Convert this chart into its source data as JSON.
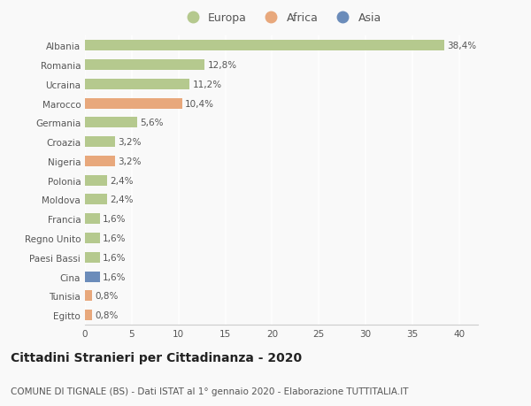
{
  "categories": [
    "Albania",
    "Romania",
    "Ucraina",
    "Marocco",
    "Germania",
    "Croazia",
    "Nigeria",
    "Polonia",
    "Moldova",
    "Francia",
    "Regno Unito",
    "Paesi Bassi",
    "Cina",
    "Tunisia",
    "Egitto"
  ],
  "values": [
    38.4,
    12.8,
    11.2,
    10.4,
    5.6,
    3.2,
    3.2,
    2.4,
    2.4,
    1.6,
    1.6,
    1.6,
    1.6,
    0.8,
    0.8
  ],
  "labels": [
    "38,4%",
    "12,8%",
    "11,2%",
    "10,4%",
    "5,6%",
    "3,2%",
    "3,2%",
    "2,4%",
    "2,4%",
    "1,6%",
    "1,6%",
    "1,6%",
    "1,6%",
    "0,8%",
    "0,8%"
  ],
  "continents": [
    "Europa",
    "Europa",
    "Europa",
    "Africa",
    "Europa",
    "Europa",
    "Africa",
    "Europa",
    "Europa",
    "Europa",
    "Europa",
    "Europa",
    "Asia",
    "Africa",
    "Africa"
  ],
  "colors": {
    "Europa": "#b5c98e",
    "Africa": "#e8a87c",
    "Asia": "#6b8cba"
  },
  "xlim": [
    0,
    42
  ],
  "xticks": [
    0,
    5,
    10,
    15,
    20,
    25,
    30,
    35,
    40
  ],
  "title": "Cittadini Stranieri per Cittadinanza - 2020",
  "subtitle": "COMUNE DI TIGNALE (BS) - Dati ISTAT al 1° gennaio 2020 - Elaborazione TUTTITALIA.IT",
  "title_fontsize": 10,
  "subtitle_fontsize": 7.5,
  "background_color": "#f9f9f9",
  "bar_height": 0.55,
  "label_fontsize": 7.5,
  "tick_fontsize": 7.5,
  "legend_fontsize": 9
}
